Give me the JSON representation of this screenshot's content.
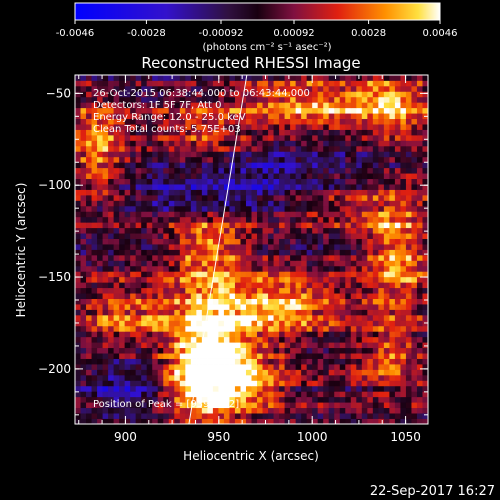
{
  "chart_data": {
    "type": "heatmap",
    "title": "Reconstructed RHESSI Image",
    "xlabel": "Heliocentric X (arcsec)",
    "ylabel": "Heliocentric Y (arcsec)",
    "xlim": [
      873,
      1062
    ],
    "ylim": [
      -230,
      -40
    ],
    "x_ticks": [
      900,
      950,
      1000,
      1050
    ],
    "y_ticks": [
      -50,
      -100,
      -150,
      -200
    ],
    "colorbar": {
      "ticks": [
        "-0.0046",
        "-0.0028",
        "-0.00092",
        "0.00092",
        "0.0028",
        "0.0046"
      ],
      "range": [
        -0.0046,
        0.0046
      ],
      "label": "(photons cm⁻² s⁻¹ asec⁻²)"
    },
    "annotations": [
      "26-Oct-2015 06:38:44.000 to 06:43:44.000",
      "Detectors: 1F 5F 7F, Att 0",
      "Energy Range: 12.0 - 25.0 keV",
      "Clean    Total counts: 5.75E+03"
    ],
    "peak_label": "Position of Peak = [939,-202]",
    "peak": [
      939,
      -202
    ],
    "limb_line": {
      "x": [
        934,
        965
      ],
      "y": [
        -230,
        -40
      ]
    },
    "grid_size": [
      64,
      64
    ],
    "blobs": [
      {
        "x": 945,
        "y": -185,
        "sx": 15,
        "sy": 30,
        "amp": 0.0046
      },
      {
        "x": 955,
        "y": -205,
        "sx": 20,
        "sy": 12,
        "amp": 0.0035
      },
      {
        "x": 985,
        "y": -165,
        "sx": 22,
        "sy": 12,
        "amp": 0.0036
      },
      {
        "x": 900,
        "y": -170,
        "sx": 18,
        "sy": 12,
        "amp": 0.0026
      },
      {
        "x": 885,
        "y": -80,
        "sx": 12,
        "sy": 20,
        "amp": 0.0033
      },
      {
        "x": 1000,
        "y": -55,
        "sx": 30,
        "sy": 10,
        "amp": 0.0036
      },
      {
        "x": 1045,
        "y": -55,
        "sx": 14,
        "sy": 12,
        "amp": 0.003
      },
      {
        "x": 1045,
        "y": -140,
        "sx": 12,
        "sy": 25,
        "amp": 0.0031
      },
      {
        "x": 1040,
        "y": -195,
        "sx": 12,
        "sy": 12,
        "amp": 0.0022
      },
      {
        "x": 940,
        "y": -75,
        "sx": 18,
        "sy": 15,
        "amp": 0.0021
      },
      {
        "x": 945,
        "y": -130,
        "sx": 15,
        "sy": 10,
        "amp": 0.0026
      },
      {
        "x": 1010,
        "y": -110,
        "sx": 30,
        "sy": 10,
        "amp": 0.0019
      },
      {
        "x": 960,
        "y": -100,
        "sx": 45,
        "sy": 12,
        "amp": -0.0027
      },
      {
        "x": 900,
        "y": -210,
        "sx": 14,
        "sy": 10,
        "amp": -0.0022
      }
    ],
    "footer_date": "22-Sep-2017 16:27"
  }
}
